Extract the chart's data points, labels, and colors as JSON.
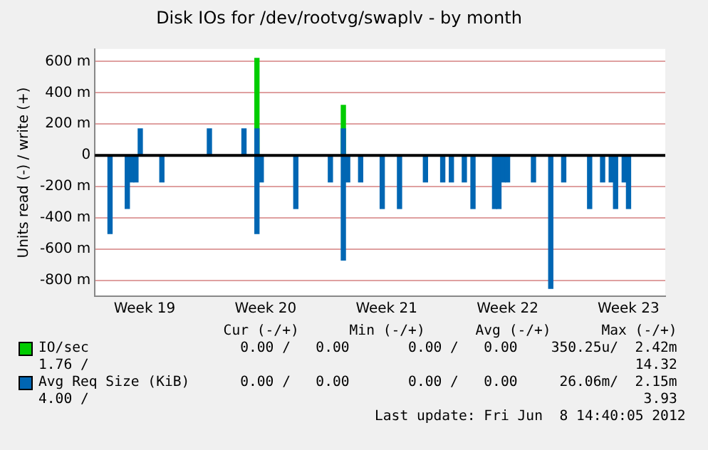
{
  "chart_data": {
    "type": "bar",
    "title": "Disk IOs for /dev/rootvg/swaplv - by month",
    "ylabel": "Units read (-) / write (+)",
    "categories": [
      null,
      null,
      null,
      null,
      null,
      null,
      null,
      null,
      null,
      null,
      null,
      "Week 19",
      null,
      null,
      null,
      null,
      null,
      null,
      null,
      null,
      null,
      null,
      null,
      null,
      null,
      null,
      null,
      null,
      null,
      null,
      null,
      null,
      null,
      null,
      null,
      null,
      null,
      null,
      null,
      "Week 20",
      null,
      null,
      null,
      null,
      null,
      null,
      null,
      null,
      null,
      null,
      null,
      null,
      null,
      null,
      null,
      null,
      null,
      null,
      null,
      null,
      null,
      null,
      null,
      null,
      null,
      null,
      null,
      "Week 21",
      null,
      null,
      null,
      null,
      null,
      null,
      null,
      null,
      null,
      null,
      null,
      null,
      null,
      null,
      null,
      null,
      null,
      null,
      null,
      null,
      null,
      null,
      null,
      null,
      null,
      null,
      null,
      "Week 22",
      null,
      null,
      null,
      null,
      null,
      null,
      null,
      null,
      null,
      null,
      null,
      null,
      null,
      null,
      null,
      null,
      null,
      null,
      null,
      null,
      null,
      null,
      null,
      null,
      null,
      null,
      null,
      "Week 23",
      null,
      null,
      null,
      null,
      null,
      null,
      null,
      null
    ],
    "ylim": [
      -900,
      680
    ],
    "yticks": [
      {
        "value": -800,
        "label": "-800 m"
      },
      {
        "value": -600,
        "label": "-600 m"
      },
      {
        "value": -400,
        "label": "-400 m"
      },
      {
        "value": -200,
        "label": "-200 m"
      },
      0,
      {
        "value": 200,
        "label": "200 m"
      },
      {
        "value": 400,
        "label": "400 m"
      },
      {
        "value": 600,
        "label": "600 m"
      }
    ],
    "grid": "y",
    "legend": "bottom",
    "ref_lines": [
      {
        "axis": "y",
        "value": 0,
        "label": null,
        "color": "#000000"
      }
    ],
    "series": [
      {
        "name": "IO/sec",
        "color": "#00cc00",
        "values": [
          null,
          null,
          null,
          null,
          null,
          null,
          null,
          null,
          null,
          null,
          null,
          null,
          null,
          null,
          null,
          null,
          null,
          null,
          null,
          null,
          null,
          null,
          null,
          null,
          null,
          null,
          null,
          null,
          null,
          null,
          null,
          null,
          null,
          null,
          null,
          null,
          null,
          620,
          null,
          null,
          null,
          null,
          null,
          null,
          null,
          null,
          null,
          null,
          null,
          null,
          null,
          null,
          null,
          null,
          null,
          null,
          null,
          320,
          null,
          null,
          null,
          null,
          null,
          null,
          null,
          null,
          null,
          null,
          null,
          null,
          null,
          null,
          null,
          null,
          null,
          null,
          null,
          null,
          null,
          null,
          null,
          null,
          null,
          null,
          null,
          null,
          null,
          null,
          null,
          null,
          null,
          null,
          null,
          null,
          null,
          null,
          null,
          null,
          null,
          null,
          null,
          null,
          null,
          null,
          null,
          null,
          null,
          null,
          null,
          null,
          null,
          null,
          null,
          null,
          null,
          null,
          null,
          null,
          null,
          null,
          null,
          null,
          null,
          null,
          null,
          null,
          null,
          null,
          null,
          null,
          null,
          null
        ]
      },
      {
        "name": "Avg Req Size (KiB)",
        "color": "#0066b3",
        "values": [
          null,
          null,
          null,
          null,
          null,
          null,
          null,
          null,
          null,
          null,
          170,
          null,
          null,
          null,
          null,
          null,
          null,
          null,
          null,
          null,
          null,
          null,
          null,
          null,
          null,
          null,
          170,
          null,
          null,
          null,
          null,
          null,
          null,
          null,
          170,
          null,
          null,
          170,
          null,
          null,
          null,
          null,
          null,
          null,
          null,
          null,
          null,
          null,
          null,
          null,
          null,
          null,
          null,
          null,
          null,
          null,
          null,
          170,
          null,
          null,
          null,
          null,
          null,
          null,
          null,
          null,
          null,
          null,
          null,
          null,
          null,
          null,
          null,
          null,
          null,
          null,
          null,
          null,
          null,
          null,
          null,
          null,
          null,
          null,
          null,
          null,
          null,
          null,
          null,
          null,
          null,
          null,
          null,
          null,
          null,
          null,
          null,
          null,
          null,
          null,
          null,
          null,
          null,
          null,
          null,
          null,
          null,
          null,
          null,
          null,
          null,
          null,
          null,
          null,
          null,
          null,
          null,
          null,
          null,
          null,
          null,
          null,
          null,
          null,
          null,
          null,
          null,
          null,
          null,
          null,
          null,
          null
        ]
      },
      {
        "color": "#0066b3",
        "values": [
          null,
          null,
          null,
          -500,
          null,
          null,
          null,
          -340,
          -170,
          -170,
          null,
          null,
          null,
          null,
          null,
          -170,
          null,
          null,
          null,
          null,
          null,
          null,
          null,
          null,
          null,
          null,
          null,
          null,
          null,
          null,
          null,
          null,
          null,
          null,
          null,
          null,
          null,
          -500,
          -170,
          null,
          null,
          null,
          null,
          null,
          null,
          null,
          -340,
          null,
          null,
          null,
          null,
          null,
          null,
          null,
          -170,
          null,
          null,
          -670,
          -170,
          null,
          null,
          -170,
          null,
          null,
          null,
          null,
          -340,
          null,
          null,
          null,
          -340,
          null,
          null,
          null,
          null,
          null,
          -170,
          null,
          null,
          null,
          -170,
          null,
          -170,
          null,
          null,
          -170,
          null,
          -340,
          null,
          null,
          null,
          null,
          -340,
          -340,
          -170,
          -170,
          null,
          null,
          null,
          null,
          null,
          -170,
          null,
          null,
          null,
          -850,
          null,
          null,
          -170,
          null,
          null,
          null,
          null,
          null,
          -340,
          null,
          null,
          -170,
          null,
          -170,
          -340,
          null,
          -170,
          -340,
          null,
          null,
          null,
          null,
          null,
          null,
          null,
          null
        ]
      }
    ],
    "annotations": [
      "Cur (-/+)      Min (-/+)      Avg (-/+)      Max (-/+)",
      "0.00 /   0.00       0.00 /   0.00    350.25u/  2.42m",
      "1.76 /",
      "14.32",
      "0.00 /   0.00       0.00 /   0.00     26.06m/  2.15m",
      "4.00 /",
      "3.93",
      "Last update: Fri Jun  8 14:40:05 2012"
    ]
  }
}
